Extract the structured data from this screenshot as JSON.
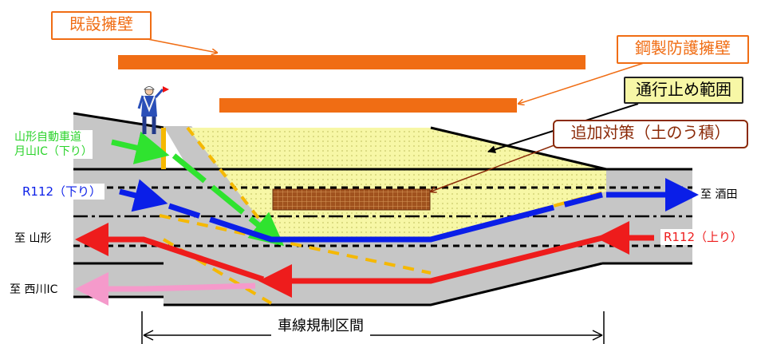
{
  "callouts": {
    "existing_wall": "既設擁壁",
    "steel_barrier": "鋼製防護擁壁",
    "closure_area": "通行止め範囲",
    "additional_measure": "追加対策（土のう積）"
  },
  "labels": {
    "expressway_line1": "山形自動車道",
    "expressway_line2": "月山IC（下り）",
    "r112_down": "R112（下り）",
    "r112_up": "R112（上り）",
    "to_sakata": "至 酒田",
    "to_yamagata": "至 山形",
    "to_nishikawa": "至 西川IC",
    "restriction_section": "車線規制区間"
  },
  "colors": {
    "orange": "#f06d14",
    "road_gray": "#c6c6c6",
    "closure_yellow": "#f7f7a6",
    "sandbag_brown": "#a0521e",
    "lane_yellow": "#f5b800",
    "blue": "#0a1ee8",
    "red": "#ee1c1c",
    "green": "#2fe32f",
    "pink": "#f59acb",
    "dark_red_text": "#8b2a08"
  },
  "icons": [
    "flagman-icon"
  ]
}
